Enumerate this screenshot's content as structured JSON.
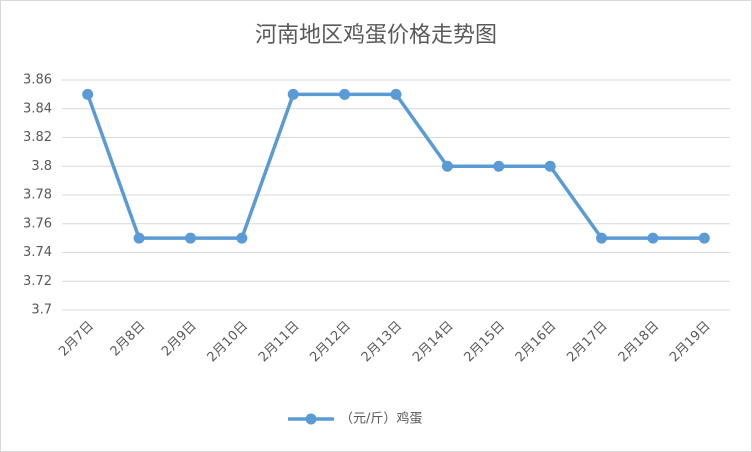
{
  "chart_data": {
    "type": "line",
    "title": "河南地区鸡蛋价格走势图",
    "categories": [
      "2月7日",
      "2月8日",
      "2月9日",
      "2月10日",
      "2月11日",
      "2月12日",
      "2月13日",
      "2月14日",
      "2月15日",
      "2月16日",
      "2月17日",
      "2月18日",
      "2月19日"
    ],
    "series": [
      {
        "name": "（元/斤）鸡蛋",
        "color": "#5b9bd5",
        "values": [
          3.85,
          3.75,
          3.75,
          3.75,
          3.85,
          3.85,
          3.85,
          3.8,
          3.8,
          3.8,
          3.75,
          3.75,
          3.75
        ]
      }
    ],
    "ylim": [
      3.7,
      3.86
    ],
    "yticks": [
      3.7,
      3.72,
      3.74,
      3.76,
      3.78,
      3.8,
      3.82,
      3.84,
      3.86
    ],
    "grid": true
  }
}
